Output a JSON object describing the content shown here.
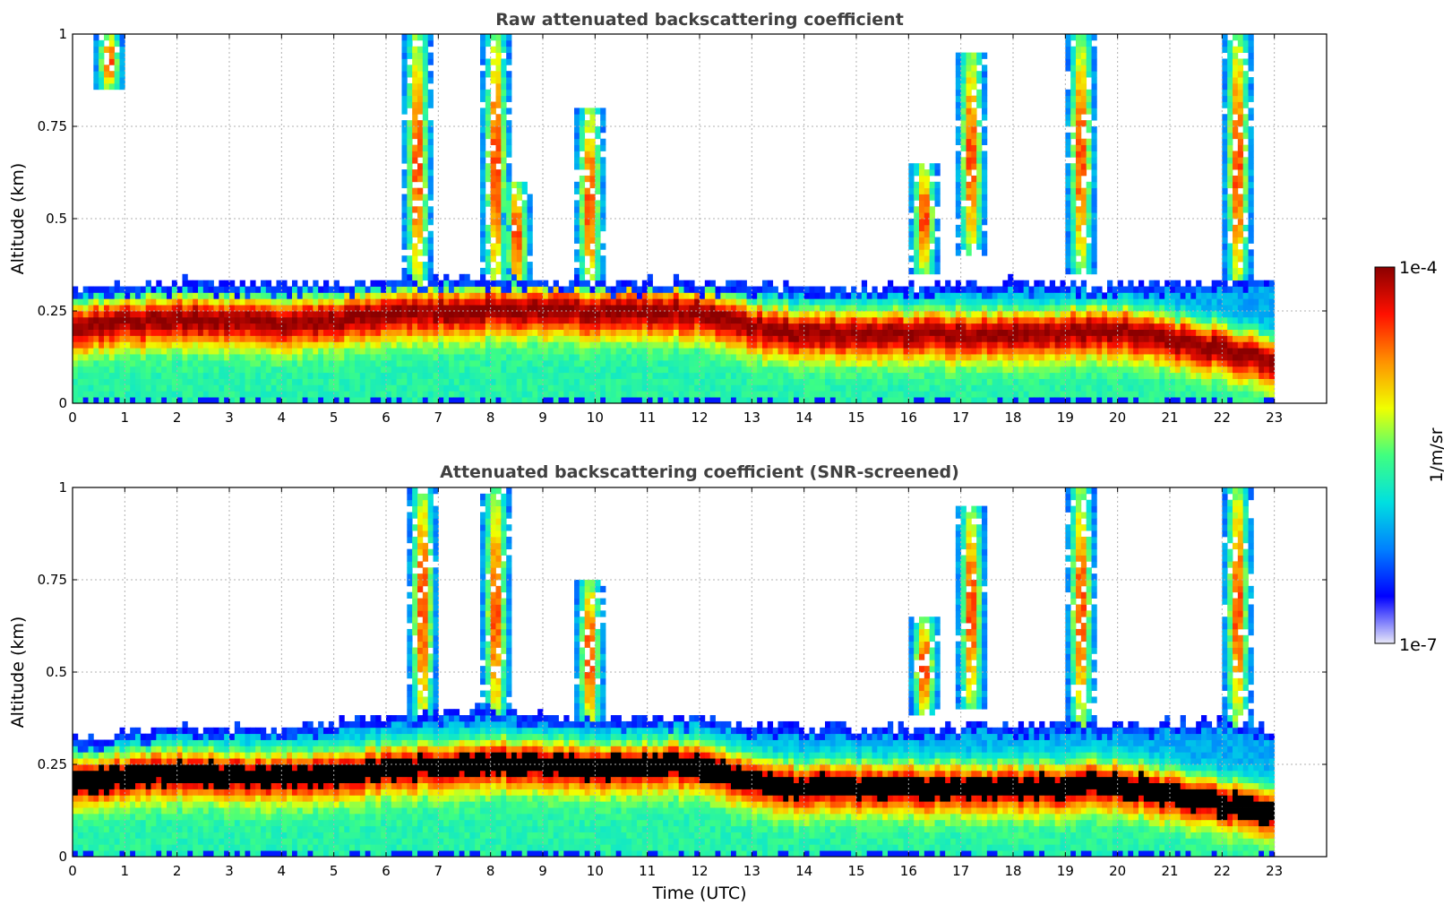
{
  "chart_data": [
    {
      "type": "heatmap",
      "title": "Raw attenuated backscattering coefficient",
      "xlabel": "",
      "ylabel": "Altitude (km)",
      "xlim": [
        0,
        24
      ],
      "ylim": [
        0,
        1
      ],
      "xticks": [
        "0",
        "1",
        "2",
        "3",
        "4",
        "5",
        "6",
        "7",
        "8",
        "9",
        "10",
        "11",
        "12",
        "13",
        "14",
        "15",
        "16",
        "17",
        "18",
        "19",
        "20",
        "21",
        "22",
        "23"
      ],
      "yticks": [
        "0",
        "0.25",
        "0.5",
        "0.75",
        "1"
      ],
      "grid": true,
      "data_end_hour": 23,
      "boundary_layer": {
        "hours": [
          0,
          2,
          4,
          6,
          8,
          10,
          12,
          12.6,
          14,
          16,
          18,
          20,
          22,
          23
        ],
        "top_km": [
          0.31,
          0.33,
          0.32,
          0.33,
          0.34,
          0.33,
          0.33,
          0.32,
          0.32,
          0.32,
          0.33,
          0.32,
          0.33,
          0.34
        ],
        "core_km": [
          0.21,
          0.23,
          0.22,
          0.24,
          0.26,
          0.25,
          0.25,
          0.22,
          0.19,
          0.19,
          0.19,
          0.2,
          0.15,
          0.12
        ]
      },
      "cloud_features": [
        {
          "hour": 0.7,
          "base_km": 0.85,
          "top_km": 1.0
        },
        {
          "hour": 6.6,
          "base_km": 0.3,
          "top_km": 1.0
        },
        {
          "hour": 8.1,
          "base_km": 0.3,
          "top_km": 1.0
        },
        {
          "hour": 8.5,
          "base_km": 0.3,
          "top_km": 0.6
        },
        {
          "hour": 9.9,
          "base_km": 0.3,
          "top_km": 0.8
        },
        {
          "hour": 16.3,
          "base_km": 0.35,
          "top_km": 0.65
        },
        {
          "hour": 17.2,
          "base_km": 0.4,
          "top_km": 0.95
        },
        {
          "hour": 19.3,
          "base_km": 0.35,
          "top_km": 1.0
        },
        {
          "hour": 22.3,
          "base_km": 0.3,
          "top_km": 1.0
        }
      ]
    },
    {
      "type": "heatmap",
      "title": "Attenuated backscattering coefficient (SNR-screened)",
      "xlabel": "Time (UTC)",
      "ylabel": "Altitude (km)",
      "xlim": [
        0,
        24
      ],
      "ylim": [
        0,
        1
      ],
      "xticks": [
        "0",
        "1",
        "2",
        "3",
        "4",
        "5",
        "6",
        "7",
        "8",
        "9",
        "10",
        "11",
        "12",
        "13",
        "14",
        "15",
        "16",
        "17",
        "18",
        "19",
        "20",
        "21",
        "22",
        "23"
      ],
      "yticks": [
        "0",
        "0.25",
        "0.5",
        "0.75",
        "1"
      ],
      "grid": true,
      "data_end_hour": 23,
      "saturated_color": "#000000",
      "boundary_layer": {
        "hours": [
          0,
          2,
          4,
          6,
          8,
          10,
          12,
          12.6,
          14,
          16,
          18,
          20,
          22,
          23
        ],
        "top_km": [
          0.32,
          0.35,
          0.35,
          0.38,
          0.4,
          0.37,
          0.38,
          0.36,
          0.35,
          0.35,
          0.36,
          0.36,
          0.37,
          0.35
        ],
        "core_km": [
          0.21,
          0.23,
          0.22,
          0.24,
          0.26,
          0.25,
          0.25,
          0.22,
          0.19,
          0.19,
          0.19,
          0.2,
          0.15,
          0.12
        ]
      },
      "cloud_features": [
        {
          "hour": 6.7,
          "base_km": 0.35,
          "top_km": 1.0
        },
        {
          "hour": 8.1,
          "base_km": 0.35,
          "top_km": 1.0
        },
        {
          "hour": 9.9,
          "base_km": 0.35,
          "top_km": 0.75
        },
        {
          "hour": 16.3,
          "base_km": 0.38,
          "top_km": 0.65
        },
        {
          "hour": 17.2,
          "base_km": 0.4,
          "top_km": 0.95
        },
        {
          "hour": 19.3,
          "base_km": 0.35,
          "top_km": 1.0
        },
        {
          "hour": 22.3,
          "base_km": 0.35,
          "top_km": 1.0
        }
      ]
    }
  ],
  "colorbar": {
    "label": "1/m/sr",
    "min_label": "1e-7",
    "max_label": "1e-4",
    "stops": [
      "#e8e8f8",
      "#0000ff",
      "#0080ff",
      "#00e0e0",
      "#40ff80",
      "#f0ff00",
      "#ff9000",
      "#ff1000",
      "#8b0000"
    ]
  }
}
